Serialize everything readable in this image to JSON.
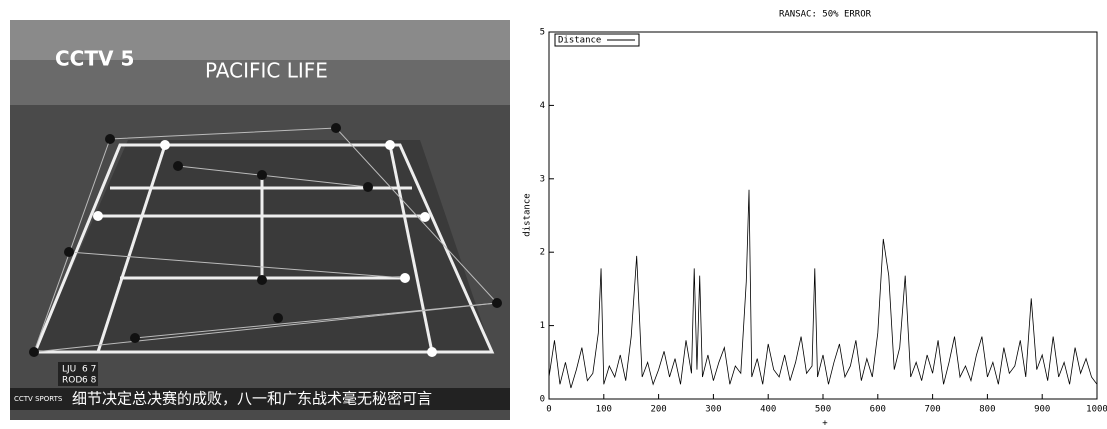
{
  "image": {
    "texts": [
      "CCTV 5",
      "PACIFIC LIFE",
      "LJU",
      "ROD",
      "6 7",
      "6 8",
      "CCTV SPORTS",
      "细节决定总决赛的成败，八一和广东战术毫无秘密可言"
    ]
  },
  "chart_data": {
    "type": "line",
    "title": "RANSAC: 50% ERROR",
    "x_label": "+",
    "y_label": "distance",
    "legend": "top-left",
    "grid": false,
    "x": [
      0,
      10,
      20,
      30,
      40,
      50,
      60,
      70,
      80,
      90,
      95,
      100,
      110,
      120,
      130,
      140,
      150,
      160,
      170,
      180,
      190,
      200,
      210,
      220,
      230,
      240,
      250,
      260,
      265,
      270,
      275,
      280,
      290,
      300,
      310,
      320,
      330,
      340,
      350,
      360,
      365,
      370,
      380,
      390,
      400,
      410,
      420,
      430,
      440,
      450,
      460,
      470,
      480,
      485,
      490,
      500,
      510,
      520,
      530,
      540,
      550,
      560,
      570,
      580,
      590,
      600,
      610,
      620,
      630,
      640,
      650,
      660,
      670,
      680,
      690,
      700,
      710,
      720,
      730,
      740,
      750,
      760,
      770,
      780,
      790,
      800,
      810,
      820,
      830,
      840,
      850,
      860,
      870,
      880,
      890,
      900,
      910,
      920,
      930,
      940,
      950,
      960,
      970,
      980,
      990,
      1000
    ],
    "series": [
      {
        "name": "Distance",
        "color": "#000000",
        "values": [
          0.3,
          0.8,
          0.2,
          0.5,
          0.15,
          0.4,
          0.7,
          0.25,
          0.35,
          0.9,
          1.78,
          0.2,
          0.45,
          0.3,
          0.6,
          0.25,
          0.85,
          1.95,
          0.3,
          0.5,
          0.2,
          0.4,
          0.65,
          0.3,
          0.55,
          0.2,
          0.8,
          0.35,
          1.78,
          0.4,
          1.68,
          0.3,
          0.6,
          0.25,
          0.5,
          0.7,
          0.2,
          0.45,
          0.35,
          1.6,
          2.85,
          0.3,
          0.55,
          0.2,
          0.75,
          0.4,
          0.3,
          0.6,
          0.25,
          0.5,
          0.85,
          0.35,
          0.45,
          1.78,
          0.3,
          0.6,
          0.2,
          0.5,
          0.75,
          0.3,
          0.45,
          0.8,
          0.25,
          0.55,
          0.3,
          0.9,
          2.18,
          1.68,
          0.4,
          0.7,
          1.68,
          0.3,
          0.5,
          0.25,
          0.6,
          0.35,
          0.8,
          0.2,
          0.5,
          0.85,
          0.3,
          0.45,
          0.25,
          0.6,
          0.85,
          0.3,
          0.5,
          0.2,
          0.7,
          0.35,
          0.45,
          0.8,
          0.3,
          1.37,
          0.4,
          0.6,
          0.25,
          0.85,
          0.3,
          0.5,
          0.2,
          0.7,
          0.35,
          0.55,
          0.3,
          0.2
        ]
      }
    ],
    "xlim": [
      0,
      1000
    ],
    "ylim": [
      0,
      5
    ],
    "xticks": [
      0,
      100,
      200,
      300,
      400,
      500,
      600,
      700,
      800,
      900,
      1000
    ],
    "yticks": [
      0,
      1,
      2,
      3,
      4,
      5
    ]
  }
}
